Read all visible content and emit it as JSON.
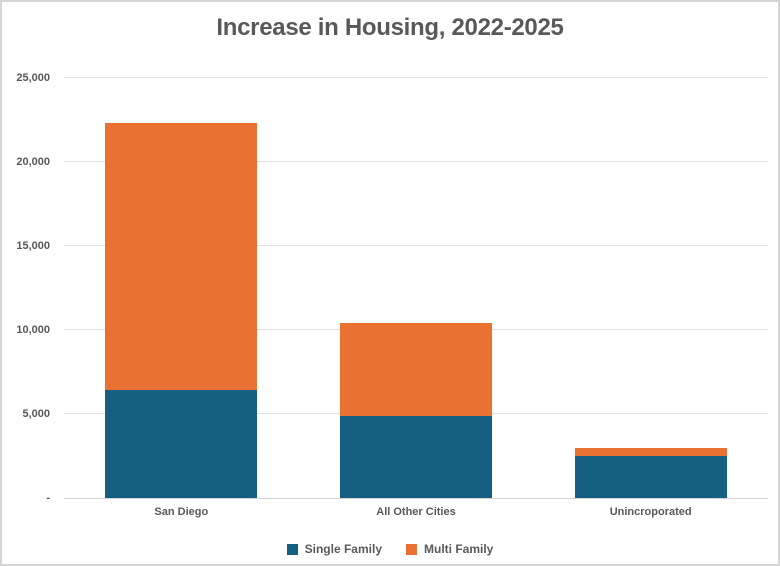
{
  "window": {
    "background": "#ffffff",
    "border_color": "#d6d6d6"
  },
  "chart_data": {
    "type": "bar",
    "stacked": true,
    "title": "Increase in Housing, 2022-2025",
    "categories": [
      "San Diego",
      "All Other Cities",
      "Unincroporated"
    ],
    "series": [
      {
        "name": "Single Family",
        "color": "#156082",
        "values": [
          6400,
          4900,
          2500
        ]
      },
      {
        "name": "Multi Family",
        "color": "#E97132",
        "values": [
          15900,
          5500,
          500
        ]
      }
    ],
    "totals": [
      22300,
      10400,
      3000
    ],
    "xlabel": "",
    "ylabel": "",
    "ylim": [
      0,
      25000
    ],
    "yticks": [
      {
        "value": 0,
        "label": "-"
      },
      {
        "value": 5000,
        "label": "5,000"
      },
      {
        "value": 10000,
        "label": "10,000"
      },
      {
        "value": 15000,
        "label": "15,000"
      },
      {
        "value": 20000,
        "label": "20,000"
      },
      {
        "value": 25000,
        "label": "25,000"
      }
    ],
    "grid": true,
    "legend_position": "bottom",
    "colors": {
      "title_text": "#595959",
      "axis_text": "#595959",
      "gridline": "#e2e2e2",
      "axis_line": "#d2d2d2"
    }
  }
}
